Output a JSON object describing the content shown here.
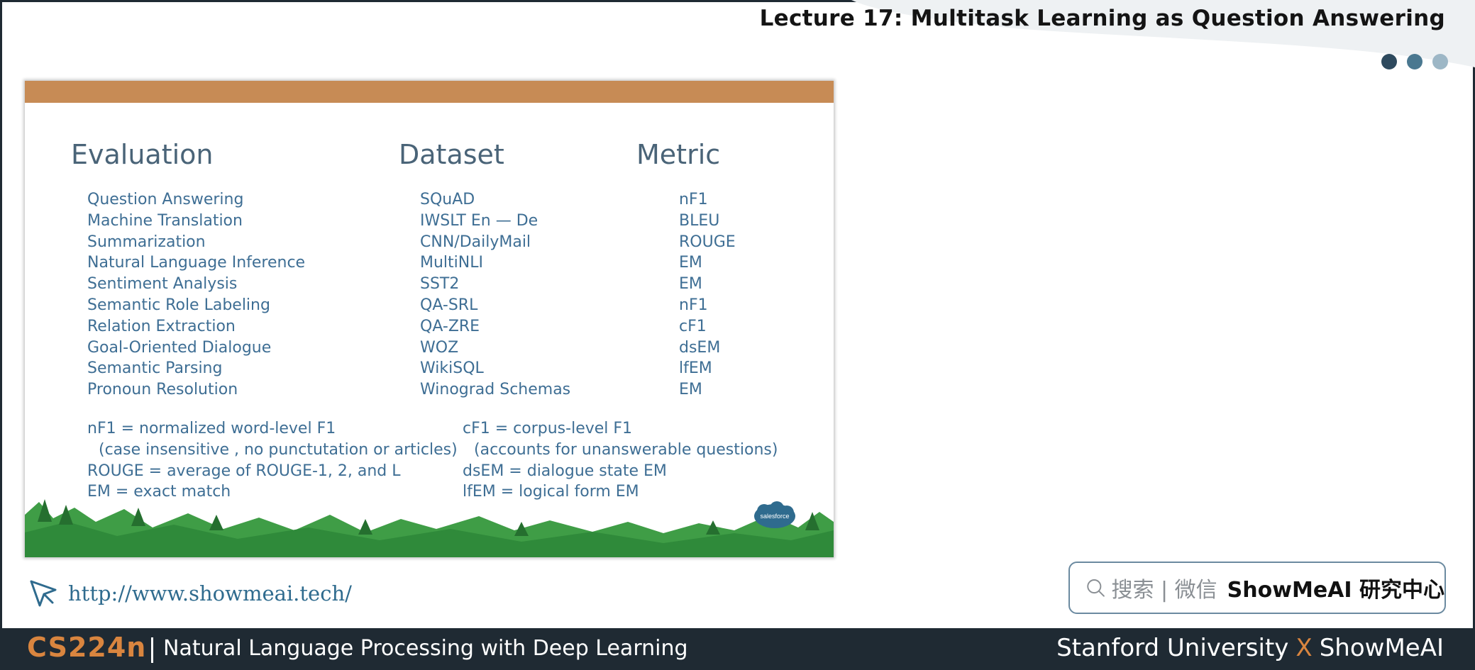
{
  "header": {
    "title": "Lecture 17: Multitask Learning as Question Answering",
    "dot_colors": [
      "#2e4a5e",
      "#4a7890",
      "#9db7c6"
    ]
  },
  "slide": {
    "bar_color": "#c78b55",
    "headers": {
      "evaluation": "Evaluation",
      "dataset": "Dataset",
      "metric": "Metric"
    },
    "rows": [
      {
        "task": "Question Answering",
        "dataset": "SQuAD",
        "metric": "nF1"
      },
      {
        "task": "Machine Translation",
        "dataset": "IWSLT En — De",
        "metric": "BLEU"
      },
      {
        "task": "Summarization",
        "dataset": "CNN/DailyMail",
        "metric": "ROUGE"
      },
      {
        "task": "Natural Language Inference",
        "dataset": "MultiNLI",
        "metric": "EM"
      },
      {
        "task": "Sentiment Analysis",
        "dataset": "SST2",
        "metric": "EM"
      },
      {
        "task": "Semantic Role Labeling",
        "dataset": "QA-SRL",
        "metric": "nF1"
      },
      {
        "task": "Relation Extraction",
        "dataset": "QA-ZRE",
        "metric": "cF1"
      },
      {
        "task": "Goal-Oriented Dialogue",
        "dataset": "WOZ",
        "metric": "dsEM"
      },
      {
        "task": "Semantic Parsing",
        "dataset": "WikiSQL",
        "metric": "lfEM"
      },
      {
        "task": "Pronoun Resolution",
        "dataset": "Winograd Schemas",
        "metric": "EM"
      }
    ],
    "notes_left": [
      "nF1 = normalized word-level F1",
      "(case insensitive , no punctutation or articles)",
      "ROUGE = average of ROUGE-1, 2, and L",
      "EM = exact match"
    ],
    "notes_right": [
      "cF1 = corpus-level F1",
      "(accounts for unanswerable questions)",
      "dsEM = dialogue state EM",
      "lfEM = logical form EM"
    ],
    "logo_text": "salesforce"
  },
  "link": {
    "url": "http://www.showmeai.tech/"
  },
  "search": {
    "label": "搜索 | 微信",
    "brand": "ShowMeAI 研究中心"
  },
  "footer": {
    "course_code": "CS224n",
    "course_name": "Natural Language Processing with Deep Learning",
    "credit_left": "Stanford University",
    "credit_x": "X",
    "credit_right": "ShowMeAI"
  }
}
